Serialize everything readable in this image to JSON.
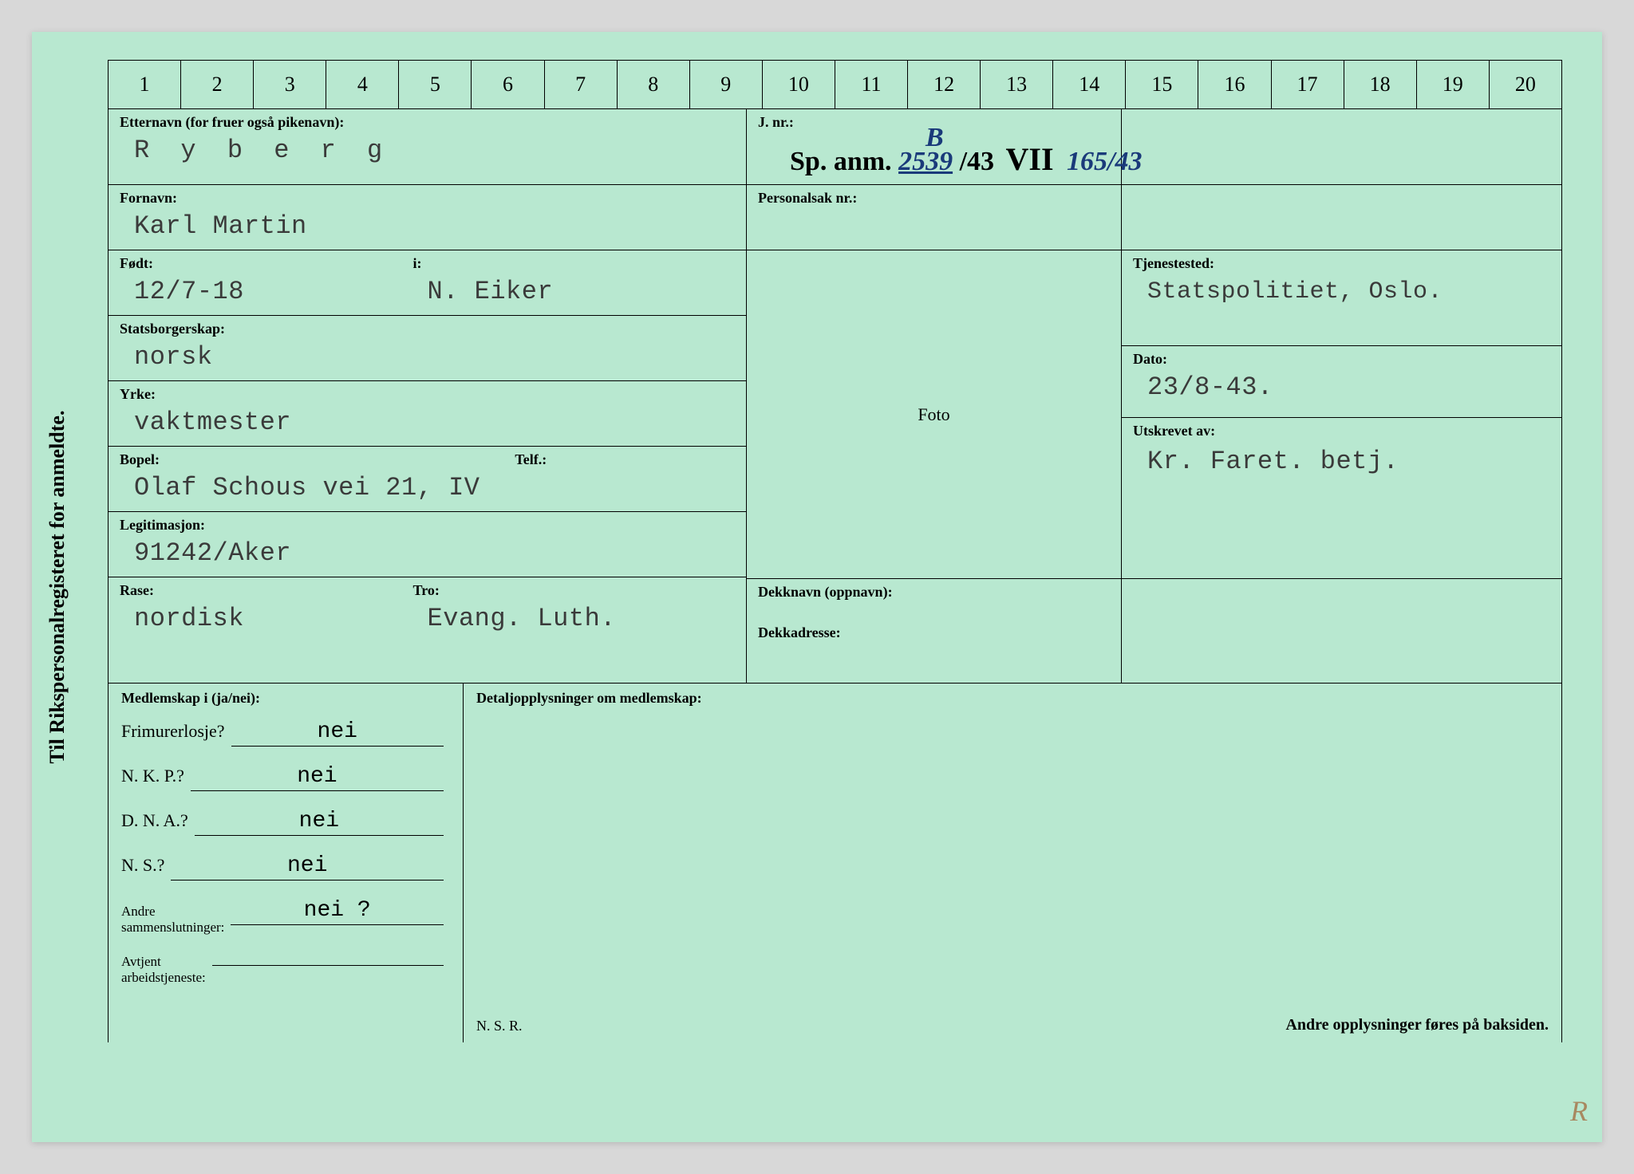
{
  "card": {
    "background_color": "#b8e8d0",
    "ink_color": "#3a3a3a",
    "handwriting_color": "#1a3a7a",
    "border_color": "#000000"
  },
  "vertical_title": "Til Rikspersonalregisteret for anmeldte.",
  "ruler": [
    "1",
    "2",
    "3",
    "4",
    "5",
    "6",
    "7",
    "8",
    "9",
    "10",
    "11",
    "12",
    "13",
    "14",
    "15",
    "16",
    "17",
    "18",
    "19",
    "20"
  ],
  "labels": {
    "etternavn": "Etternavn (for fruer også pikenavn):",
    "fornavn": "Fornavn:",
    "fodt": "Født:",
    "i": "i:",
    "statsborgerskap": "Statsborgerskap:",
    "yrke": "Yrke:",
    "bopel": "Bopel:",
    "telf": "Telf.:",
    "legitimasjon": "Legitimasjon:",
    "rase": "Rase:",
    "tro": "Tro:",
    "jnr": "J. nr.:",
    "personalsak": "Personalsak nr.:",
    "foto": "Foto",
    "dekknavn": "Dekknavn (oppnavn):",
    "dekkadresse": "Dekkadresse:",
    "tjenestested": "Tjenestested:",
    "dato": "Dato:",
    "utskrevet": "Utskrevet av:",
    "medlemskap": "Medlemskap i (ja/nei):",
    "detalj": "Detaljopplysninger om medlemskap:",
    "frimurer": "Frimurerlosje?",
    "nkp": "N. K. P.?",
    "dna": "D. N. A.?",
    "ns": "N. S.?",
    "andre": "Andre\nsammenslutninger:",
    "avtjent": "Avtjent\narbeidstjeneste:",
    "nsr": "N. S. R.",
    "baksiden": "Andre opplysninger føres på baksiden."
  },
  "values": {
    "etternavn": "R y b e r g",
    "fornavn": "Karl Martin",
    "fodt": "12/7-18",
    "fodt_i": "N. Eiker",
    "statsborgerskap": "norsk",
    "yrke": "vaktmester",
    "bopel": "Olaf Schous vei 21, IV",
    "telf": "",
    "legitimasjon": "91242/Aker",
    "rase": "nordisk",
    "tro": "Evang. Luth.",
    "jnr_prefix": "Sp. anm.",
    "jnr_b": "B",
    "jnr_num1": "2539",
    "jnr_slash43": "/43",
    "jnr_vii": "VII",
    "jnr_tail": "165/43",
    "personalsak": "",
    "tjenestested": "Statspolitiet, Oslo.",
    "dato": "23/8-43.",
    "utskrevet": "Kr. Faret. betj.",
    "dekknavn": "",
    "dekkadresse": "",
    "frimurer": "nei",
    "nkp": "nei",
    "dna": "nei",
    "ns": "nei",
    "andre": "nei ?",
    "avtjent": "",
    "r_mark": "R"
  }
}
